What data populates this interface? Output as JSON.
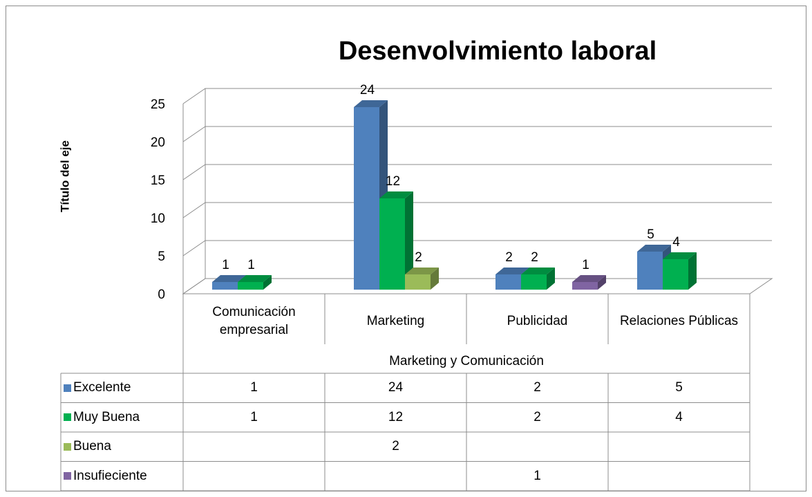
{
  "chart_data": {
    "type": "bar3d",
    "title": "Desenvolvimiento laboral",
    "y_label": "Título del eje",
    "x_label": "Marketing y Comunicación",
    "categories": [
      "Comunicación empresarial",
      "Marketing",
      "Publicidad",
      "Relaciones Públicas"
    ],
    "series": [
      {
        "name": "Excelente",
        "color": "#4f81bd",
        "values": [
          1,
          24,
          2,
          5
        ]
      },
      {
        "name": "Muy Buena",
        "color": "#00b050",
        "values": [
          1,
          12,
          2,
          4
        ]
      },
      {
        "name": "Buena",
        "color": "#9bbb59",
        "values": [
          null,
          2,
          null,
          null
        ]
      },
      {
        "name": "Insufieciente",
        "color": "#8064a2",
        "values": [
          null,
          null,
          1,
          null
        ]
      }
    ],
    "ylim": [
      0,
      25
    ],
    "yticks": [
      0,
      5,
      10,
      15,
      20,
      25
    ],
    "grid": true,
    "data_table": true
  }
}
